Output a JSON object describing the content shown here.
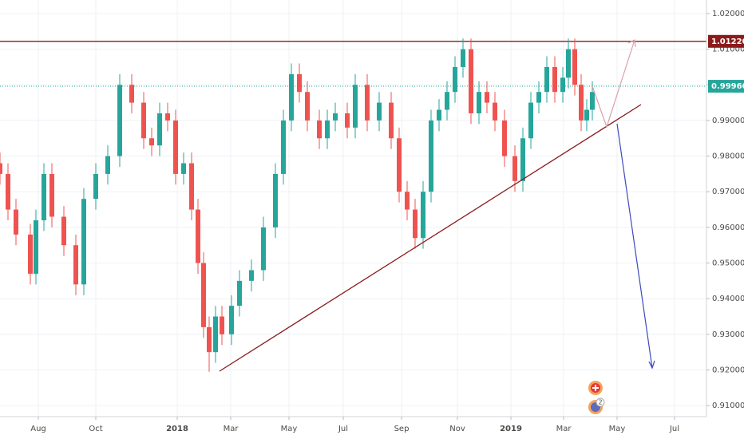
{
  "chart_data": {
    "type": "candlestick",
    "x": [
      0,
      1,
      2,
      3.8,
      4.5,
      5.5,
      6.5,
      8,
      9.5,
      10.5,
      12,
      13.5,
      15,
      16.5,
      18,
      19,
      20,
      21,
      22,
      23,
      24,
      24.8,
      25.5,
      26.2,
      27,
      27.8,
      29,
      30,
      31.5,
      33,
      34.5,
      35.5,
      36.5,
      37.5,
      38.5,
      40,
      41,
      42,
      43.5,
      44.5,
      46,
      47.5,
      49,
      50,
      51,
      52,
      53,
      54,
      55,
      56,
      57,
      58,
      59,
      60,
      61,
      62,
      63.2,
      64.5,
      65.5,
      66.5,
      67.5,
      68.5,
      69.5,
      70.5,
      71.2,
      72,
      72.8,
      73.5,
      74.2
    ],
    "open": [
      0.978,
      0.975,
      0.965,
      0.958,
      0.947,
      0.962,
      0.975,
      0.963,
      0.955,
      0.944,
      0.968,
      0.975,
      0.98,
      1.0,
      0.995,
      0.985,
      0.983,
      0.992,
      0.99,
      0.975,
      0.978,
      0.965,
      0.95,
      0.932,
      0.925,
      0.935,
      0.93,
      0.938,
      0.945,
      0.948,
      0.96,
      0.975,
      0.99,
      1.003,
      0.998,
      0.99,
      0.985,
      0.99,
      0.992,
      0.988,
      1.0,
      0.99,
      0.995,
      0.985,
      0.97,
      0.965,
      0.957,
      0.97,
      0.99,
      0.993,
      0.998,
      1.005,
      1.01,
      0.992,
      0.998,
      0.995,
      0.99,
      0.98,
      0.973,
      0.985,
      0.995,
      0.998,
      1.005,
      0.998,
      1.002,
      1.01,
      1.0,
      0.99,
      0.993
    ],
    "high": [
      0.981,
      0.978,
      0.968,
      0.961,
      0.965,
      0.978,
      0.978,
      0.966,
      0.958,
      0.971,
      0.978,
      0.983,
      1.003,
      1.003,
      0.998,
      0.988,
      0.995,
      0.995,
      0.993,
      0.981,
      0.981,
      0.968,
      0.953,
      0.935,
      0.938,
      0.938,
      0.941,
      0.948,
      0.951,
      0.963,
      0.978,
      0.993,
      1.006,
      1.006,
      1.001,
      0.993,
      0.993,
      0.995,
      0.995,
      1.003,
      1.003,
      0.998,
      0.998,
      0.988,
      0.973,
      0.968,
      0.973,
      0.993,
      0.996,
      1.001,
      1.008,
      1.013,
      1.013,
      1.001,
      1.001,
      0.998,
      0.993,
      0.983,
      0.988,
      0.998,
      1.001,
      1.008,
      1.008,
      1.005,
      1.013,
      1.013,
      1.003,
      0.996,
      1.001
    ],
    "low": [
      0.972,
      0.962,
      0.955,
      0.944,
      0.944,
      0.959,
      0.96,
      0.952,
      0.941,
      0.941,
      0.965,
      0.972,
      0.977,
      0.992,
      0.982,
      0.98,
      0.98,
      0.987,
      0.972,
      0.972,
      0.962,
      0.947,
      0.929,
      0.9195,
      0.922,
      0.927,
      0.927,
      0.935,
      0.942,
      0.945,
      0.957,
      0.972,
      0.987,
      0.995,
      0.987,
      0.982,
      0.982,
      0.987,
      0.985,
      0.985,
      0.987,
      0.987,
      0.982,
      0.967,
      0.962,
      0.954,
      0.954,
      0.967,
      0.987,
      0.99,
      0.995,
      1.002,
      0.989,
      0.989,
      0.992,
      0.987,
      0.977,
      0.97,
      0.97,
      0.982,
      0.992,
      0.995,
      0.995,
      0.995,
      0.999,
      0.997,
      0.987,
      0.987,
      0.99
    ],
    "close": [
      0.975,
      0.965,
      0.958,
      0.947,
      0.962,
      0.975,
      0.963,
      0.955,
      0.944,
      0.968,
      0.975,
      0.98,
      1.0,
      0.995,
      0.985,
      0.983,
      0.992,
      0.99,
      0.975,
      0.978,
      0.965,
      0.95,
      0.932,
      0.925,
      0.935,
      0.93,
      0.938,
      0.945,
      0.948,
      0.96,
      0.975,
      0.99,
      1.003,
      0.998,
      0.99,
      0.985,
      0.99,
      0.992,
      0.988,
      1.0,
      0.99,
      0.995,
      0.985,
      0.97,
      0.965,
      0.957,
      0.97,
      0.99,
      0.993,
      0.998,
      1.005,
      1.01,
      0.992,
      0.998,
      0.995,
      0.99,
      0.98,
      0.973,
      0.985,
      0.995,
      0.998,
      1.005,
      0.998,
      1.002,
      1.01,
      1.0,
      0.99,
      0.993,
      0.998
    ],
    "up_color": "#26a69a",
    "down_color": "#ef5350",
    "xlim": [
      0,
      88.5
    ],
    "xticks": [
      {
        "value": 4.8,
        "label": "Aug"
      },
      {
        "value": 12,
        "label": "Oct"
      },
      {
        "value": 22.2,
        "label": "2018"
      },
      {
        "value": 28.9,
        "label": "Mar"
      },
      {
        "value": 36.2,
        "label": "May"
      },
      {
        "value": 43,
        "label": "Jul"
      },
      {
        "value": 50.3,
        "label": "Sep"
      },
      {
        "value": 57.3,
        "label": "Nov"
      },
      {
        "value": 64,
        "label": "2019"
      },
      {
        "value": 70.6,
        "label": "Mar"
      },
      {
        "value": 77.3,
        "label": "May"
      },
      {
        "value": 84.5,
        "label": "Jul"
      }
    ],
    "ylim": [
      0.9069,
      1.0238
    ],
    "yticks": [
      {
        "value": 0.91,
        "label": "0.91000"
      },
      {
        "value": 0.92,
        "label": "0.92000"
      },
      {
        "value": 0.93,
        "label": "0.93000"
      },
      {
        "value": 0.94,
        "label": "0.94000"
      },
      {
        "value": 0.95,
        "label": "0.95000"
      },
      {
        "value": 0.96,
        "label": "0.96000"
      },
      {
        "value": 0.97,
        "label": "0.97000"
      },
      {
        "value": 0.98,
        "label": "0.98000"
      },
      {
        "value": 0.99,
        "label": "0.99000"
      },
      {
        "value": 1.0,
        "label": "1.00000"
      },
      {
        "value": 1.01,
        "label": "1.01000"
      },
      {
        "value": 1.02,
        "label": "1.02000"
      }
    ],
    "grid": true,
    "price_lines": [
      {
        "value": 1.0122,
        "label": "1.01220",
        "color": "#8b1a1a",
        "style": "solid"
      },
      {
        "value": 0.9996,
        "label": "0.99960",
        "color": "#26a69a",
        "style": "dotted"
      }
    ],
    "event_badge": "2"
  }
}
